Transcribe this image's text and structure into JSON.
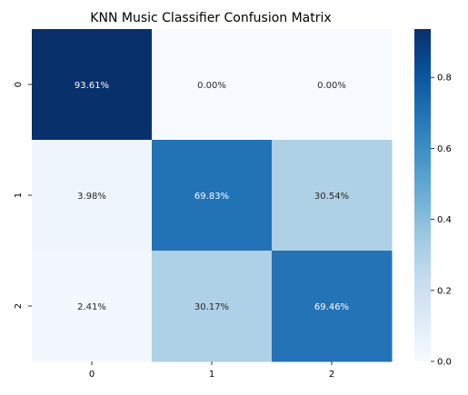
{
  "chart_data": {
    "type": "heatmap",
    "title": "KNN Music Classifier Confusion Matrix",
    "xlabel": "",
    "ylabel": "",
    "x_categories": [
      "0",
      "1",
      "2"
    ],
    "y_categories": [
      "0",
      "1",
      "2"
    ],
    "values": [
      [
        0.9361,
        0.0,
        0.0
      ],
      [
        0.0398,
        0.6983,
        0.3054
      ],
      [
        0.0241,
        0.3017,
        0.6946
      ]
    ],
    "annotations": [
      [
        "93.61%",
        "0.00%",
        "0.00%"
      ],
      [
        "3.98%",
        "69.83%",
        "30.54%"
      ],
      [
        "2.41%",
        "30.17%",
        "69.46%"
      ]
    ],
    "colormap": "Blues",
    "colorbar": {
      "range": [
        0.0,
        0.9361
      ],
      "ticks": [
        0.0,
        0.2,
        0.4,
        0.6,
        0.8
      ],
      "tick_labels": [
        "0.0",
        "0.2",
        "0.4",
        "0.6",
        "0.8"
      ]
    },
    "colors": {
      "low": "#f7fbff",
      "high": "#08306b",
      "text_dark": "#262626",
      "text_light": "#ffffff"
    },
    "grid": false
  }
}
